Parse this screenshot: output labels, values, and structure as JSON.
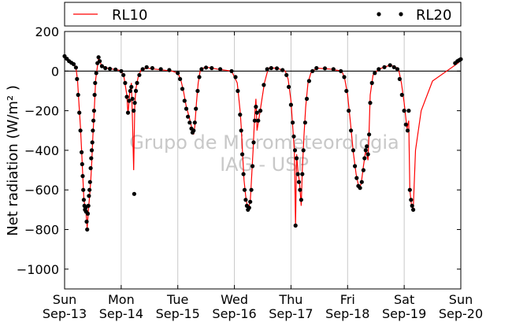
{
  "chart_data": {
    "type": "line",
    "title": "",
    "xlabel": "",
    "ylabel": "Net radiation (W/m² )",
    "ylim": [
      -1100,
      200
    ],
    "yticks": [
      200,
      0,
      -200,
      -400,
      -600,
      -800,
      -1000
    ],
    "ytick_labels": [
      "200",
      "0",
      "−200",
      "−400",
      "−600",
      "−800",
      "−1000"
    ],
    "xticks": [
      {
        "day": "Sun",
        "date": "Sep-13"
      },
      {
        "day": "Mon",
        "date": "Sep-14"
      },
      {
        "day": "Tue",
        "date": "Sep-15"
      },
      {
        "day": "Wed",
        "date": "Sep-16"
      },
      {
        "day": "Thu",
        "date": "Sep-17"
      },
      {
        "day": "Fri",
        "date": "Sep-18"
      },
      {
        "day": "Sat",
        "date": "Sep-19"
      },
      {
        "day": "Sun",
        "date": "Sep-20"
      }
    ],
    "grid": "vertical",
    "zero_line": true,
    "legend_placement": "top (outside)",
    "watermark": [
      "Grupo de Micrometeorologia",
      "IAG - USP"
    ],
    "series": [
      {
        "name": "RL10",
        "style": "line",
        "color": "#ff0000",
        "points": [
          [
            0.0,
            75
          ],
          [
            0.05,
            60
          ],
          [
            0.1,
            45
          ],
          [
            0.15,
            38
          ],
          [
            0.2,
            20
          ],
          [
            0.23,
            -50
          ],
          [
            0.25,
            -150
          ],
          [
            0.28,
            -280
          ],
          [
            0.3,
            -400
          ],
          [
            0.32,
            -520
          ],
          [
            0.34,
            -640
          ],
          [
            0.36,
            -690
          ],
          [
            0.38,
            -720
          ],
          [
            0.4,
            -790
          ],
          [
            0.42,
            -700
          ],
          [
            0.44,
            -640
          ],
          [
            0.46,
            -560
          ],
          [
            0.48,
            -460
          ],
          [
            0.5,
            -330
          ],
          [
            0.52,
            -220
          ],
          [
            0.55,
            -40
          ],
          [
            0.6,
            65
          ],
          [
            0.65,
            30
          ],
          [
            0.75,
            15
          ],
          [
            0.85,
            10
          ],
          [
            0.95,
            5
          ],
          [
            1.0,
            0
          ],
          [
            1.05,
            -30
          ],
          [
            1.1,
            -120
          ],
          [
            1.12,
            -220
          ],
          [
            1.15,
            -110
          ],
          [
            1.18,
            -60
          ],
          [
            1.2,
            -250
          ],
          [
            1.22,
            -500
          ],
          [
            1.24,
            -170
          ],
          [
            1.26,
            -90
          ],
          [
            1.3,
            -30
          ],
          [
            1.35,
            5
          ],
          [
            1.45,
            15
          ],
          [
            1.6,
            10
          ],
          [
            1.9,
            0
          ],
          [
            2.0,
            -10
          ],
          [
            2.05,
            -40
          ],
          [
            2.1,
            -100
          ],
          [
            2.15,
            -180
          ],
          [
            2.2,
            -230
          ],
          [
            2.25,
            -290
          ],
          [
            2.28,
            -320
          ],
          [
            2.3,
            -280
          ],
          [
            2.33,
            -160
          ],
          [
            2.36,
            -60
          ],
          [
            2.4,
            10
          ],
          [
            2.5,
            20
          ],
          [
            2.7,
            10
          ],
          [
            2.95,
            0
          ],
          [
            3.05,
            -60
          ],
          [
            3.1,
            -200
          ],
          [
            3.12,
            -280
          ],
          [
            3.15,
            -450
          ],
          [
            3.17,
            -550
          ],
          [
            3.2,
            -630
          ],
          [
            3.22,
            -670
          ],
          [
            3.25,
            -690
          ],
          [
            3.28,
            -660
          ],
          [
            3.3,
            -560
          ],
          [
            3.33,
            -400
          ],
          [
            3.36,
            -220
          ],
          [
            3.38,
            -140
          ],
          [
            3.4,
            -300
          ],
          [
            3.45,
            -210
          ],
          [
            3.53,
            -60
          ],
          [
            3.6,
            15
          ],
          [
            3.75,
            15
          ],
          [
            3.9,
            0
          ],
          [
            3.95,
            -40
          ],
          [
            4.0,
            -150
          ],
          [
            4.03,
            -280
          ],
          [
            4.06,
            -400
          ],
          [
            4.08,
            -780
          ],
          [
            4.1,
            -420
          ],
          [
            4.12,
            -500
          ],
          [
            4.15,
            -560
          ],
          [
            4.18,
            -680
          ],
          [
            4.2,
            -500
          ],
          [
            4.23,
            -320
          ],
          [
            4.26,
            -180
          ],
          [
            4.3,
            -60
          ],
          [
            4.35,
            -10
          ],
          [
            4.45,
            15
          ],
          [
            4.7,
            10
          ],
          [
            4.9,
            0
          ],
          [
            4.95,
            -40
          ],
          [
            5.0,
            -120
          ],
          [
            5.05,
            -260
          ],
          [
            5.1,
            -410
          ],
          [
            5.15,
            -520
          ],
          [
            5.2,
            -590
          ],
          [
            5.24,
            -570
          ],
          [
            5.28,
            -480
          ],
          [
            5.32,
            -400
          ],
          [
            5.36,
            -450
          ],
          [
            5.38,
            -300
          ],
          [
            5.4,
            -120
          ],
          [
            5.45,
            -20
          ],
          [
            5.55,
            10
          ],
          [
            5.75,
            30
          ],
          [
            5.85,
            20
          ],
          [
            5.9,
            10
          ],
          [
            5.95,
            -60
          ],
          [
            6.0,
            -160
          ],
          [
            6.05,
            -290
          ],
          [
            6.08,
            -250
          ],
          [
            6.1,
            -600
          ],
          [
            6.13,
            -680
          ],
          [
            6.16,
            -700
          ],
          [
            6.2,
            -400
          ],
          [
            6.3,
            -200
          ],
          [
            6.5,
            -50
          ],
          [
            6.95,
            40
          ],
          [
            7.0,
            55
          ]
        ]
      },
      {
        "name": "RL20",
        "style": "points",
        "color": "#000000",
        "points": [
          [
            0.0,
            75
          ],
          [
            0.04,
            62
          ],
          [
            0.08,
            50
          ],
          [
            0.12,
            42
          ],
          [
            0.16,
            35
          ],
          [
            0.2,
            18
          ],
          [
            0.22,
            -40
          ],
          [
            0.24,
            -120
          ],
          [
            0.26,
            -210
          ],
          [
            0.28,
            -300
          ],
          [
            0.3,
            -410
          ],
          [
            0.31,
            -470
          ],
          [
            0.32,
            -530
          ],
          [
            0.33,
            -600
          ],
          [
            0.34,
            -650
          ],
          [
            0.35,
            -680
          ],
          [
            0.36,
            -700
          ],
          [
            0.37,
            -690
          ],
          [
            0.38,
            -710
          ],
          [
            0.39,
            -760
          ],
          [
            0.4,
            -800
          ],
          [
            0.41,
            -720
          ],
          [
            0.42,
            -680
          ],
          [
            0.43,
            -630
          ],
          [
            0.44,
            -600
          ],
          [
            0.45,
            -560
          ],
          [
            0.46,
            -490
          ],
          [
            0.47,
            -440
          ],
          [
            0.48,
            -400
          ],
          [
            0.49,
            -360
          ],
          [
            0.5,
            -300
          ],
          [
            0.51,
            -250
          ],
          [
            0.52,
            -200
          ],
          [
            0.53,
            -120
          ],
          [
            0.54,
            -60
          ],
          [
            0.56,
            -10
          ],
          [
            0.58,
            40
          ],
          [
            0.6,
            70
          ],
          [
            0.62,
            50
          ],
          [
            0.66,
            25
          ],
          [
            0.72,
            15
          ],
          [
            0.8,
            12
          ],
          [
            0.9,
            8
          ],
          [
            1.0,
            0
          ],
          [
            1.04,
            -20
          ],
          [
            1.07,
            -60
          ],
          [
            1.1,
            -130
          ],
          [
            1.12,
            -210
          ],
          [
            1.14,
            -150
          ],
          [
            1.16,
            -100
          ],
          [
            1.18,
            -80
          ],
          [
            1.2,
            -140
          ],
          [
            1.22,
            -200
          ],
          [
            1.23,
            -620
          ],
          [
            1.24,
            -160
          ],
          [
            1.26,
            -100
          ],
          [
            1.28,
            -60
          ],
          [
            1.32,
            -20
          ],
          [
            1.38,
            10
          ],
          [
            1.45,
            20
          ],
          [
            1.55,
            15
          ],
          [
            1.7,
            10
          ],
          [
            1.85,
            5
          ],
          [
            2.0,
            -10
          ],
          [
            2.04,
            -40
          ],
          [
            2.08,
            -90
          ],
          [
            2.12,
            -150
          ],
          [
            2.15,
            -190
          ],
          [
            2.18,
            -230
          ],
          [
            2.21,
            -260
          ],
          [
            2.24,
            -290
          ],
          [
            2.26,
            -310
          ],
          [
            2.28,
            -300
          ],
          [
            2.3,
            -260
          ],
          [
            2.32,
            -190
          ],
          [
            2.35,
            -100
          ],
          [
            2.38,
            -30
          ],
          [
            2.42,
            10
          ],
          [
            2.5,
            18
          ],
          [
            2.6,
            15
          ],
          [
            2.75,
            10
          ],
          [
            2.95,
            0
          ],
          [
            3.02,
            -30
          ],
          [
            3.06,
            -100
          ],
          [
            3.1,
            -220
          ],
          [
            3.12,
            -300
          ],
          [
            3.14,
            -420
          ],
          [
            3.16,
            -520
          ],
          [
            3.18,
            -600
          ],
          [
            3.2,
            -650
          ],
          [
            3.22,
            -680
          ],
          [
            3.24,
            -700
          ],
          [
            3.26,
            -690
          ],
          [
            3.28,
            -660
          ],
          [
            3.3,
            -600
          ],
          [
            3.32,
            -480
          ],
          [
            3.34,
            -360
          ],
          [
            3.36,
            -250
          ],
          [
            3.38,
            -180
          ],
          [
            3.4,
            -210
          ],
          [
            3.42,
            -250
          ],
          [
            3.46,
            -200
          ],
          [
            3.52,
            -70
          ],
          [
            3.58,
            10
          ],
          [
            3.65,
            15
          ],
          [
            3.75,
            14
          ],
          [
            3.85,
            5
          ],
          [
            3.92,
            -20
          ],
          [
            3.96,
            -80
          ],
          [
            4.0,
            -170
          ],
          [
            4.03,
            -260
          ],
          [
            4.05,
            -330
          ],
          [
            4.07,
            -400
          ],
          [
            4.08,
            -780
          ],
          [
            4.1,
            -440
          ],
          [
            4.12,
            -520
          ],
          [
            4.14,
            -560
          ],
          [
            4.16,
            -600
          ],
          [
            4.18,
            -650
          ],
          [
            4.2,
            -520
          ],
          [
            4.22,
            -400
          ],
          [
            4.25,
            -260
          ],
          [
            4.28,
            -140
          ],
          [
            4.32,
            -50
          ],
          [
            4.38,
            0
          ],
          [
            4.45,
            15
          ],
          [
            4.6,
            14
          ],
          [
            4.75,
            10
          ],
          [
            4.88,
            0
          ],
          [
            4.94,
            -30
          ],
          [
            4.98,
            -100
          ],
          [
            5.02,
            -200
          ],
          [
            5.06,
            -300
          ],
          [
            5.1,
            -400
          ],
          [
            5.13,
            -480
          ],
          [
            5.16,
            -540
          ],
          [
            5.19,
            -580
          ],
          [
            5.22,
            -590
          ],
          [
            5.25,
            -560
          ],
          [
            5.28,
            -500
          ],
          [
            5.3,
            -440
          ],
          [
            5.32,
            -400
          ],
          [
            5.34,
            -380
          ],
          [
            5.36,
            -420
          ],
          [
            5.38,
            -320
          ],
          [
            5.4,
            -160
          ],
          [
            5.43,
            -60
          ],
          [
            5.48,
            -10
          ],
          [
            5.55,
            10
          ],
          [
            5.65,
            20
          ],
          [
            5.75,
            30
          ],
          [
            5.82,
            20
          ],
          [
            5.88,
            10
          ],
          [
            5.92,
            -40
          ],
          [
            5.96,
            -120
          ],
          [
            6.0,
            -200
          ],
          [
            6.03,
            -270
          ],
          [
            6.06,
            -300
          ],
          [
            6.08,
            -200
          ],
          [
            6.1,
            -600
          ],
          [
            6.12,
            -650
          ],
          [
            6.14,
            -680
          ],
          [
            6.16,
            -700
          ],
          [
            6.9,
            40
          ],
          [
            6.94,
            50
          ],
          [
            6.97,
            55
          ],
          [
            7.0,
            60
          ]
        ]
      }
    ]
  }
}
